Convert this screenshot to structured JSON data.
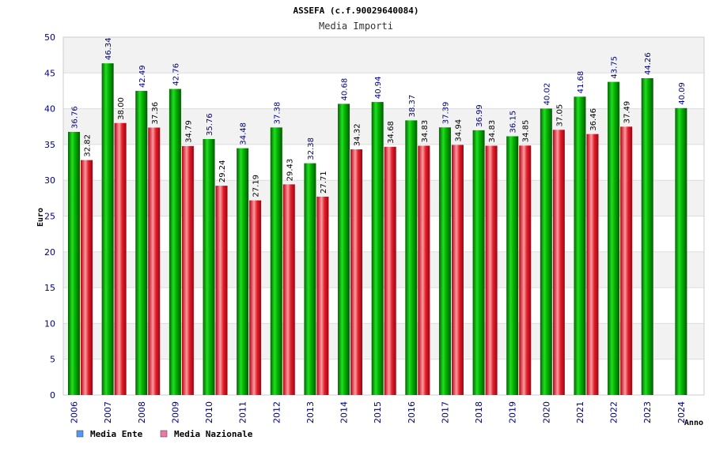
{
  "chart_data": {
    "type": "bar",
    "title": "ASSEFA (c.f.90029640084)",
    "subtitle": "Media Importi",
    "xlabel": "Anno",
    "ylabel": "Euro",
    "ylim": [
      0,
      50
    ],
    "yticks": [
      "0",
      "5",
      "10",
      "15",
      "20",
      "25",
      "30",
      "35",
      "40",
      "45",
      "50"
    ],
    "grid": true,
    "legend_position": "bottom-left",
    "categories": [
      "2006",
      "2007",
      "2008",
      "2009",
      "2010",
      "2011",
      "2012",
      "2013",
      "2014",
      "2015",
      "2016",
      "2017",
      "2018",
      "2019",
      "2020",
      "2021",
      "2022",
      "2023",
      "2024"
    ],
    "series": [
      {
        "name": "Media Ente",
        "color": "#00b000",
        "legend_color": "#5599ee",
        "label_color": "#000080",
        "values": [
          36.76,
          46.34,
          42.49,
          42.76,
          35.76,
          34.48,
          37.38,
          32.38,
          40.68,
          40.94,
          38.37,
          37.39,
          36.99,
          36.15,
          40.02,
          41.68,
          43.75,
          44.26,
          40.09
        ],
        "labels": [
          "36.76",
          "46.34",
          "42.49",
          "42.76",
          "35.76",
          "34.48",
          "37.38",
          "32.38",
          "40.68",
          "40.94",
          "38.37",
          "37.39",
          "36.99",
          "36.15",
          "40.02",
          "41.68",
          "43.75",
          "44.26",
          "40.09"
        ]
      },
      {
        "name": "Media Nazionale",
        "color": "#e0202a",
        "legend_color": "#ee77aa",
        "label_color": "#000000",
        "values": [
          32.82,
          38.0,
          37.36,
          34.79,
          29.24,
          27.19,
          29.43,
          27.71,
          34.32,
          34.68,
          34.83,
          34.94,
          34.83,
          34.85,
          37.05,
          36.46,
          37.49,
          null,
          null
        ],
        "labels": [
          "32.82",
          "38.00",
          "37.36",
          "34.79",
          "29.24",
          "27.19",
          "29.43",
          "27.71",
          "34.32",
          "34.68",
          "34.83",
          "34.94",
          "34.83",
          "34.85",
          "37.05",
          "36.46",
          "37.49",
          "",
          ""
        ]
      }
    ]
  }
}
